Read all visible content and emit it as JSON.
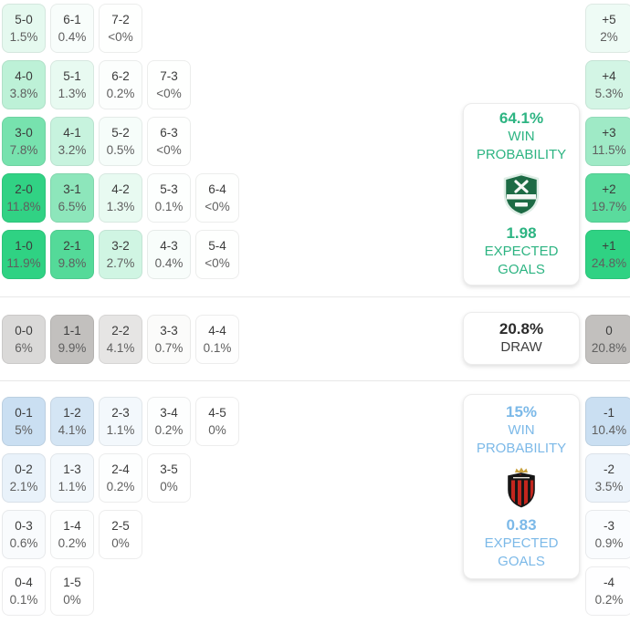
{
  "chart_data": {
    "type": "heatmap",
    "description": "Correct-score and goal-margin probability matrix with win/draw probability panels",
    "colors": {
      "home_accent": "#2fd283",
      "home_text": "#2db482",
      "draw_accent": "#c2c0be",
      "away_accent": "#cadff2",
      "away_text": "#7cb9e8",
      "score_text": "#3c3c3c",
      "pct_text": "#5f5f5f",
      "divider": "#e8e8e8"
    },
    "sections": {
      "home": {
        "rows": [
          [
            {
              "score": "5-0",
              "pct": "1.5%",
              "v": 1.5
            },
            {
              "score": "6-1",
              "pct": "0.4%",
              "v": 0.4
            },
            {
              "score": "7-2",
              "pct": "<0%",
              "v": 0.05
            }
          ],
          [
            {
              "score": "4-0",
              "pct": "3.8%",
              "v": 3.8
            },
            {
              "score": "5-1",
              "pct": "1.3%",
              "v": 1.3
            },
            {
              "score": "6-2",
              "pct": "0.2%",
              "v": 0.2
            },
            {
              "score": "7-3",
              "pct": "<0%",
              "v": 0.05
            }
          ],
          [
            {
              "score": "3-0",
              "pct": "7.8%",
              "v": 7.8
            },
            {
              "score": "4-1",
              "pct": "3.2%",
              "v": 3.2
            },
            {
              "score": "5-2",
              "pct": "0.5%",
              "v": 0.5
            },
            {
              "score": "6-3",
              "pct": "<0%",
              "v": 0.05
            }
          ],
          [
            {
              "score": "2-0",
              "pct": "11.8%",
              "v": 11.8
            },
            {
              "score": "3-1",
              "pct": "6.5%",
              "v": 6.5
            },
            {
              "score": "4-2",
              "pct": "1.3%",
              "v": 1.3
            },
            {
              "score": "5-3",
              "pct": "0.1%",
              "v": 0.1
            },
            {
              "score": "6-4",
              "pct": "<0%",
              "v": 0.05
            }
          ],
          [
            {
              "score": "1-0",
              "pct": "11.9%",
              "v": 11.9
            },
            {
              "score": "2-1",
              "pct": "9.8%",
              "v": 9.8
            },
            {
              "score": "3-2",
              "pct": "2.7%",
              "v": 2.7
            },
            {
              "score": "4-3",
              "pct": "0.4%",
              "v": 0.4
            },
            {
              "score": "5-4",
              "pct": "<0%",
              "v": 0.05
            }
          ]
        ],
        "margins": [
          {
            "diff": "+5",
            "pct": "2%",
            "v": 2
          },
          {
            "diff": "+4",
            "pct": "5.3%",
            "v": 5.3
          },
          {
            "diff": "+3",
            "pct": "11.5%",
            "v": 11.5
          },
          {
            "diff": "+2",
            "pct": "19.7%",
            "v": 19.7
          },
          {
            "diff": "+1",
            "pct": "24.8%",
            "v": 24.8
          }
        ],
        "panel": {
          "probability": "64.1%",
          "probability_label": "WIN PROBABILITY",
          "expected_goals": "1.98",
          "expected_goals_label": "EXPECTED GOALS"
        }
      },
      "draw": {
        "rows": [
          [
            {
              "score": "0-0",
              "pct": "6%",
              "v": 6
            },
            {
              "score": "1-1",
              "pct": "9.9%",
              "v": 9.9
            },
            {
              "score": "2-2",
              "pct": "4.1%",
              "v": 4.1
            },
            {
              "score": "3-3",
              "pct": "0.7%",
              "v": 0.7
            },
            {
              "score": "4-4",
              "pct": "0.1%",
              "v": 0.1
            }
          ]
        ],
        "margins": [
          {
            "diff": "0",
            "pct": "20.8%",
            "v": 20.8
          }
        ],
        "panel": {
          "probability": "20.8%",
          "probability_label": "DRAW"
        }
      },
      "away": {
        "rows": [
          [
            {
              "score": "0-1",
              "pct": "5%",
              "v": 5
            },
            {
              "score": "1-2",
              "pct": "4.1%",
              "v": 4.1
            },
            {
              "score": "2-3",
              "pct": "1.1%",
              "v": 1.1
            },
            {
              "score": "3-4",
              "pct": "0.2%",
              "v": 0.2
            },
            {
              "score": "4-5",
              "pct": "0%",
              "v": 0.02
            }
          ],
          [
            {
              "score": "0-2",
              "pct": "2.1%",
              "v": 2.1
            },
            {
              "score": "1-3",
              "pct": "1.1%",
              "v": 1.1
            },
            {
              "score": "2-4",
              "pct": "0.2%",
              "v": 0.2
            },
            {
              "score": "3-5",
              "pct": "0%",
              "v": 0.02
            }
          ],
          [
            {
              "score": "0-3",
              "pct": "0.6%",
              "v": 0.6
            },
            {
              "score": "1-4",
              "pct": "0.2%",
              "v": 0.2
            },
            {
              "score": "2-5",
              "pct": "0%",
              "v": 0.02
            }
          ],
          [
            {
              "score": "0-4",
              "pct": "0.1%",
              "v": 0.1
            },
            {
              "score": "1-5",
              "pct": "0%",
              "v": 0.02
            }
          ]
        ],
        "margins": [
          {
            "diff": "-1",
            "pct": "10.4%",
            "v": 10.4
          },
          {
            "diff": "-2",
            "pct": "3.5%",
            "v": 3.5
          },
          {
            "diff": "-3",
            "pct": "0.9%",
            "v": 0.9
          },
          {
            "diff": "-4",
            "pct": "0.2%",
            "v": 0.2
          }
        ],
        "panel": {
          "probability": "15%",
          "probability_label": "WIN PROBABILITY",
          "expected_goals": "0.83",
          "expected_goals_label": "EXPECTED GOALS"
        }
      }
    }
  }
}
